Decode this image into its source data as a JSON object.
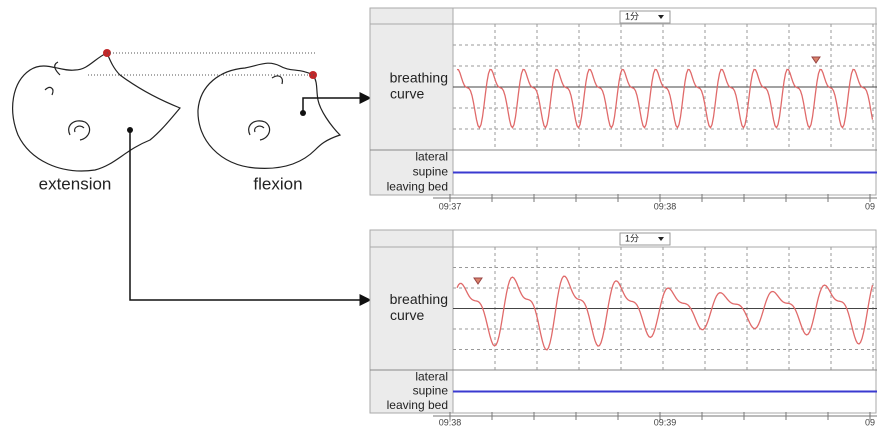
{
  "figure": {
    "illustration": {
      "extension": "extension",
      "flexion": "flexion"
    },
    "panels": [
      {
        "dropdown": "1分",
        "label": [
          "breathing",
          "curve"
        ],
        "states": [
          "lateral",
          "supine",
          "leaving bed"
        ],
        "times": [
          "09:37",
          "09:38",
          "09"
        ]
      },
      {
        "dropdown": "1分",
        "label": [
          "breathing",
          "curve"
        ],
        "states": [
          "lateral",
          "supine",
          "leaving bed"
        ],
        "times": [
          "09:38",
          "09:39",
          "09"
        ]
      }
    ]
  }
}
